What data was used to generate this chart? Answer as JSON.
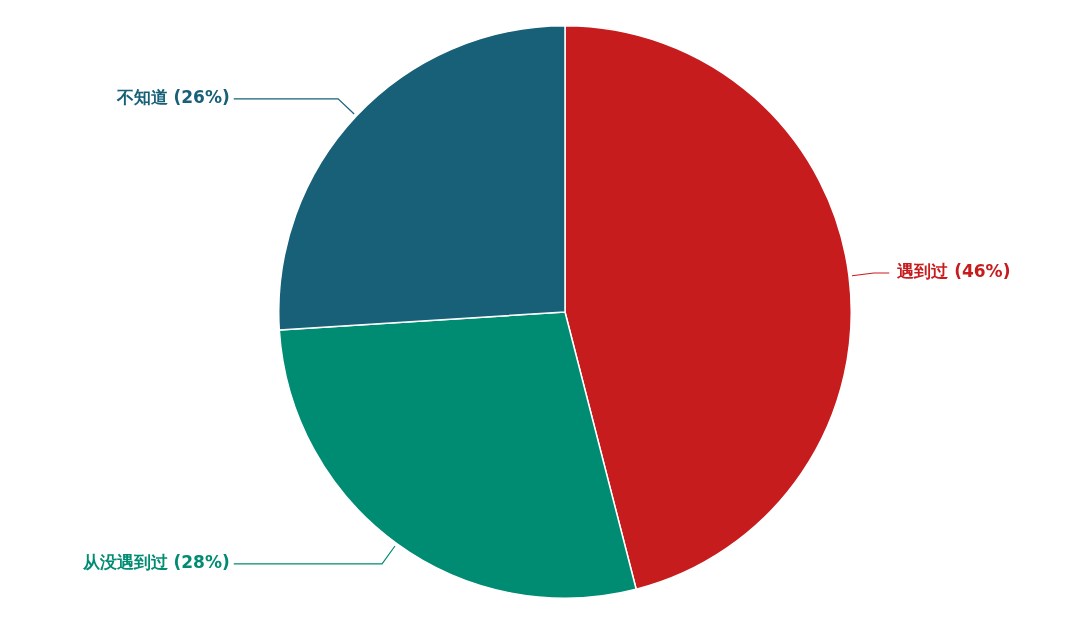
{
  "chart_data": {
    "type": "pie",
    "categories": [
      "遇到过",
      "从没遇到过",
      "不知道"
    ],
    "values": [
      46,
      28,
      26
    ],
    "colors": [
      "#c71c1e",
      "#008c72",
      "#176078"
    ],
    "value_labels": [
      "(46%)",
      "(28%)",
      "(26%)"
    ],
    "legend": false
  }
}
